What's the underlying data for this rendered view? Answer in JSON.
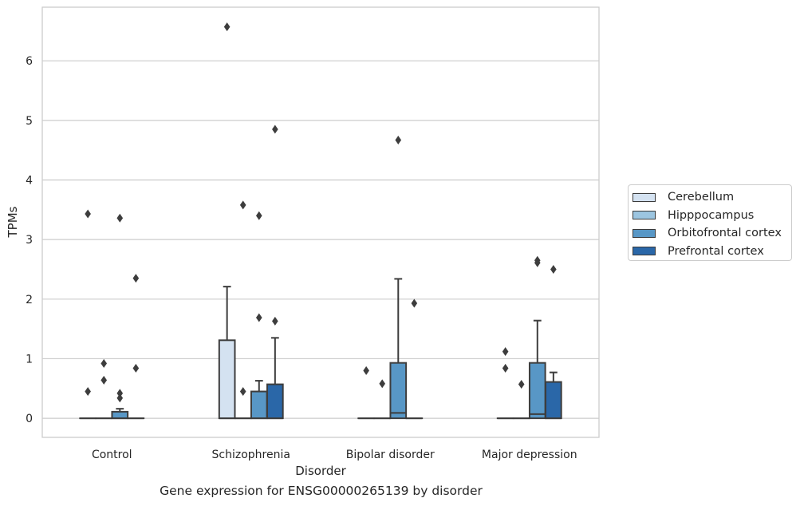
{
  "caption": "Gene expression for ENSG00000265139 by disorder",
  "legend": {
    "items": [
      {
        "label": "Cerebellum",
        "color": "#d4e2f1"
      },
      {
        "label": "Hipppocampus",
        "color": "#9cc5e0"
      },
      {
        "label": "Orbitofrontal cortex",
        "color": "#5897c6"
      },
      {
        "label": "Prefrontal cortex",
        "color": "#2a67a8"
      }
    ]
  },
  "chart_data": {
    "type": "box",
    "xlabel": "Disorder",
    "ylabel": "TPMs",
    "ylim": [
      -0.32,
      6.9
    ],
    "yticks": [
      0,
      1,
      2,
      3,
      4,
      5,
      6
    ],
    "grid": "horizontal",
    "legend_position": "right",
    "categories": [
      "Control",
      "Schizophrenia",
      "Bipolar disorder",
      "Major depression"
    ],
    "series": [
      {
        "name": "Cerebellum",
        "color": "#d4e2f1",
        "boxes": [
          {
            "q1": 0,
            "median": 0,
            "q3": 0,
            "whisker_low": 0,
            "whisker_high": 0,
            "outliers": [
              3.43,
              0.45
            ]
          },
          {
            "q1": 0,
            "median": 0,
            "q3": 1.31,
            "whisker_low": 0,
            "whisker_high": 2.21,
            "outliers": [
              6.57
            ]
          },
          {
            "q1": 0,
            "median": 0,
            "q3": 0,
            "whisker_low": 0,
            "whisker_high": 0,
            "outliers": [
              0.8
            ]
          },
          {
            "q1": 0,
            "median": 0,
            "q3": 0,
            "whisker_low": 0,
            "whisker_high": 0,
            "outliers": [
              1.12,
              0.84
            ]
          }
        ]
      },
      {
        "name": "Hipppocampus",
        "color": "#9cc5e0",
        "boxes": [
          {
            "q1": 0,
            "median": 0,
            "q3": 0,
            "whisker_low": 0,
            "whisker_high": 0,
            "outliers": [
              0.92,
              0.64
            ]
          },
          {
            "q1": 0,
            "median": 0,
            "q3": 0,
            "whisker_low": 0,
            "whisker_high": 0,
            "outliers": [
              3.58,
              0.45
            ]
          },
          {
            "q1": 0,
            "median": 0,
            "q3": 0,
            "whisker_low": 0,
            "whisker_high": 0,
            "outliers": [
              0.58
            ]
          },
          {
            "q1": 0,
            "median": 0,
            "q3": 0,
            "whisker_low": 0,
            "whisker_high": 0,
            "outliers": [
              0.57
            ]
          }
        ]
      },
      {
        "name": "Orbitofrontal cortex",
        "color": "#5897c6",
        "boxes": [
          {
            "q1": 0,
            "median": 0,
            "q3": 0.11,
            "whisker_low": 0,
            "whisker_high": 0.16,
            "outliers": [
              3.36,
              0.42,
              0.34
            ]
          },
          {
            "q1": 0,
            "median": 0,
            "q3": 0.45,
            "whisker_low": 0,
            "whisker_high": 0.63,
            "outliers": [
              3.4,
              1.69
            ]
          },
          {
            "q1": 0,
            "median": 0.09,
            "q3": 0.93,
            "whisker_low": 0,
            "whisker_high": 2.34,
            "outliers": [
              4.67
            ]
          },
          {
            "q1": 0,
            "median": 0.07,
            "q3": 0.93,
            "whisker_low": 0,
            "whisker_high": 1.64,
            "outliers": [
              2.65,
              2.61
            ]
          }
        ]
      },
      {
        "name": "Prefrontal cortex",
        "color": "#2a67a8",
        "boxes": [
          {
            "q1": 0,
            "median": 0,
            "q3": 0,
            "whisker_low": 0,
            "whisker_high": 0,
            "outliers": [
              2.35,
              0.84
            ]
          },
          {
            "q1": 0,
            "median": 0,
            "q3": 0.57,
            "whisker_low": 0,
            "whisker_high": 1.35,
            "outliers": [
              4.85,
              1.63
            ]
          },
          {
            "q1": 0,
            "median": 0,
            "q3": 0,
            "whisker_low": 0,
            "whisker_high": 0,
            "outliers": [
              1.93
            ]
          },
          {
            "q1": 0,
            "median": 0,
            "q3": 0.61,
            "whisker_low": 0,
            "whisker_high": 0.77,
            "outliers": [
              2.5
            ]
          }
        ]
      }
    ]
  }
}
